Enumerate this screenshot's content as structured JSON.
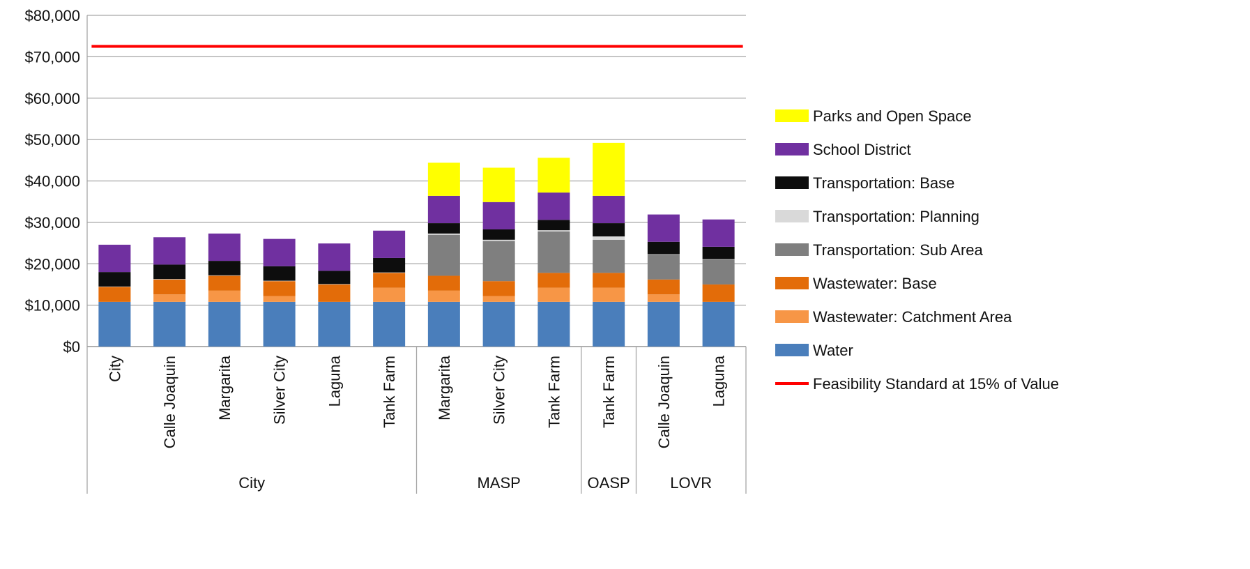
{
  "chart_data": {
    "type": "bar",
    "stacked": true,
    "title": "",
    "xlabel": "",
    "ylabel": "",
    "ylim": [
      0,
      80000
    ],
    "yticks": [
      0,
      10000,
      20000,
      30000,
      40000,
      50000,
      60000,
      70000,
      80000
    ],
    "ytick_labels": [
      "$0",
      "$10,000",
      "$20,000",
      "$30,000",
      "$40,000",
      "$50,000",
      "$60,000",
      "$70,000",
      "$80,000"
    ],
    "grid": "horizontal",
    "legend_position": "right",
    "categories": [
      "City",
      "Calle Joaquin",
      "Margarita",
      "Silver City",
      "Laguna",
      "Tank Farm",
      "Margarita",
      "Silver City",
      "Tank Farm",
      "Tank Farm",
      "Calle Joaquin",
      "Laguna"
    ],
    "groups": [
      {
        "label": "City",
        "count": 6
      },
      {
        "label": "MASP",
        "count": 3
      },
      {
        "label": "OASP",
        "count": 1
      },
      {
        "label": "LOVR",
        "count": 2
      }
    ],
    "series": [
      {
        "name": "Water",
        "color": "#4a7ebb",
        "values": [
          10800,
          10800,
          10800,
          10800,
          10800,
          10800,
          10800,
          10800,
          10800,
          10800,
          10800,
          10800
        ]
      },
      {
        "name": "Wastewater: Catchment Area",
        "color": "#f79646",
        "values": [
          0,
          1800,
          2700,
          1400,
          0,
          3400,
          2700,
          1400,
          3400,
          3400,
          1800,
          0
        ]
      },
      {
        "name": "Wastewater: Base",
        "color": "#e36c09",
        "values": [
          3600,
          3600,
          3600,
          3600,
          4200,
          3600,
          3600,
          3600,
          3600,
          3600,
          3600,
          4200
        ]
      },
      {
        "name": "Transportation: Sub Area",
        "color": "#7f7f7f",
        "values": [
          0,
          0,
          0,
          0,
          0,
          0,
          9900,
          9700,
          10000,
          8000,
          6000,
          6000
        ]
      },
      {
        "name": "Transportation: Planning",
        "color": "#d9d9d9",
        "values": [
          100,
          100,
          100,
          100,
          100,
          100,
          300,
          300,
          300,
          800,
          100,
          100
        ]
      },
      {
        "name": "Transportation: Base",
        "color": "#0d0d0d",
        "values": [
          3500,
          3500,
          3500,
          3500,
          3200,
          3500,
          2500,
          2500,
          2500,
          3200,
          3000,
          3000
        ]
      },
      {
        "name": "School District",
        "color": "#7030a0",
        "values": [
          6600,
          6600,
          6600,
          6600,
          6600,
          6600,
          6600,
          6600,
          6600,
          6600,
          6600,
          6600
        ]
      },
      {
        "name": "Parks and Open Space",
        "color": "#ffff00",
        "values": [
          0,
          0,
          0,
          0,
          0,
          0,
          8000,
          8300,
          8400,
          12800,
          0,
          0
        ]
      }
    ],
    "reference_lines": [
      {
        "name": "Feasibility Standard at 15% of Value",
        "value": 72500,
        "color": "#ff0000"
      }
    ],
    "legend_order": [
      "Parks and Open Space",
      "School District",
      "Transportation: Base",
      "Transportation: Planning",
      "Transportation: Sub Area",
      "Wastewater: Base",
      "Wastewater: Catchment Area",
      "Water",
      "Feasibility Standard at 15% of Value"
    ]
  }
}
